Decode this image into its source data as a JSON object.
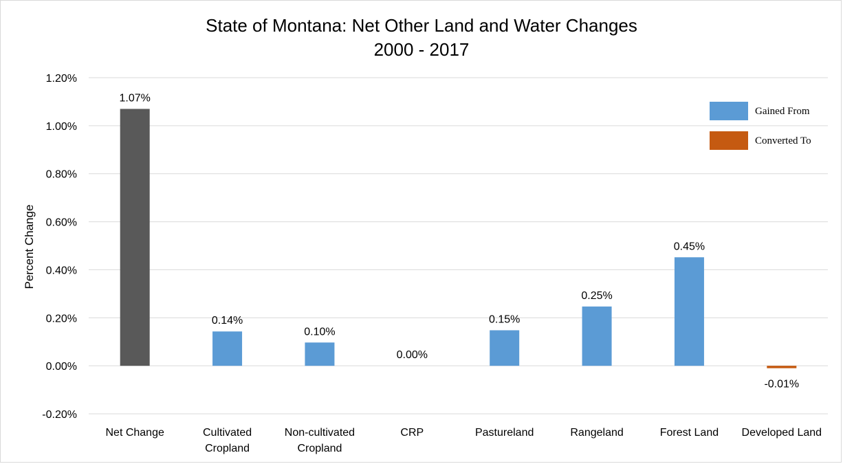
{
  "chart_data": {
    "type": "bar",
    "title": [
      "State of Montana: Net Other Land and Water Changes",
      "2000 - 2017"
    ],
    "ylabel": "Percent Change",
    "xlabel": "",
    "ylim": [
      -0.002,
      0.012
    ],
    "yticks": [
      -0.002,
      0.0,
      0.002,
      0.004,
      0.006,
      0.008,
      0.01,
      0.012
    ],
    "ytick_labels": [
      "-0.20%",
      "0.00%",
      "0.20%",
      "0.40%",
      "0.60%",
      "0.80%",
      "1.00%",
      "1.20%"
    ],
    "grid": "horizontal",
    "categories": [
      [
        "Net Change"
      ],
      [
        "Cultivated",
        "Cropland"
      ],
      [
        "Non-cultivated",
        "Cropland"
      ],
      [
        "CRP"
      ],
      [
        "Pastureland"
      ],
      [
        "Rangeland"
      ],
      [
        "Forest Land"
      ],
      [
        "Developed Land"
      ]
    ],
    "values": [
      0.0107,
      0.00143,
      0.00097,
      0.0,
      0.00148,
      0.00247,
      0.00452,
      -0.0001
    ],
    "data_labels": [
      "1.07%",
      "0.14%",
      "0.10%",
      "0.00%",
      "0.15%",
      "0.25%",
      "0.45%",
      "-0.01%"
    ],
    "bar_kind": [
      "net",
      "gained",
      "gained",
      "gained",
      "gained",
      "gained",
      "gained",
      "converted"
    ],
    "colors": {
      "net": "#595959",
      "gained": "#5b9bd5",
      "converted": "#c55a11",
      "grid": "#d9d9d9"
    },
    "legend": {
      "placement": "top-right",
      "entries": [
        {
          "name": "Gained From",
          "kind": "gained"
        },
        {
          "name": "Converted To",
          "kind": "converted"
        }
      ]
    }
  }
}
